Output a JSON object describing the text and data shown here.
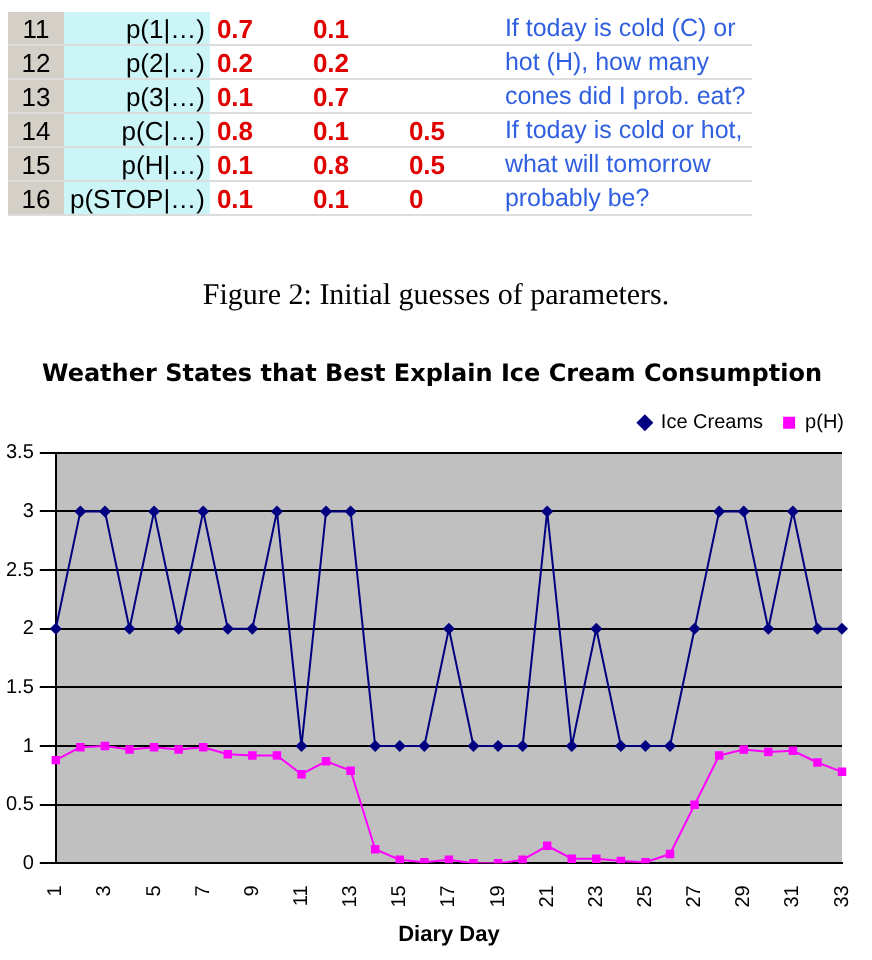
{
  "chart_data": {
    "type": "line",
    "title": "Weather States that Best Explain Ice Cream Consumption",
    "xlabel": "Diary Day",
    "annotations": [
      "11\tp(1|…)\t0.7\t0.1\t\tIf today is cold (C) or",
      "12\tp(2|…)\t0.2\t0.2\t\thot (H), how many",
      "13\tp(3|…)\t0.1\t0.7\t\tcones did I prob. eat?",
      "14\tp(C|…)\t0.8\t0.1\t0.5\tIf today is cold or hot,",
      "15\tp(H|…)\t0.1\t0.8\t0.5\twhat will tomorrow",
      "16\tp(STOP|…)\t0.1\t0.1\t0\tprobably be?",
      "Figure 2: Initial guesses of parameters."
    ],
    "categories": [
      "1",
      null,
      "3",
      null,
      "5",
      null,
      "7",
      null,
      "9",
      null,
      "11",
      null,
      "13",
      null,
      "15",
      null,
      "17",
      null,
      "19",
      null,
      "21",
      null,
      "23",
      null,
      "25",
      null,
      "27",
      null,
      "29",
      null,
      "31",
      null,
      "33"
    ],
    "series": [
      {
        "name": "Ice Creams",
        "color": "#000080",
        "marker": "diamond",
        "values": [
          2,
          3,
          3,
          2,
          3,
          2,
          3,
          2,
          2,
          3,
          1,
          3,
          3,
          1,
          1,
          1,
          2,
          1,
          1,
          1,
          3,
          1,
          2,
          1,
          1,
          1,
          2,
          3,
          3,
          2,
          3,
          2,
          2
        ]
      },
      {
        "name": "p(H)",
        "color": "#ff00ff",
        "marker": "square",
        "values": [
          0.88,
          0.99,
          1.0,
          0.97,
          0.99,
          0.97,
          0.99,
          0.93,
          0.92,
          0.92,
          0.76,
          0.87,
          0.79,
          0.12,
          0.03,
          0.01,
          0.03,
          0.0,
          0.0,
          0.03,
          0.15,
          0.04,
          0.04,
          0.02,
          0.01,
          0.08,
          0.5,
          0.92,
          0.97,
          0.95,
          0.96,
          0.86,
          0.78
        ]
      }
    ],
    "ylim": [
      0,
      3.5
    ],
    "yticks": [
      0,
      0.5,
      1,
      1.5,
      2,
      2.5,
      3,
      3.5
    ],
    "grid": "y",
    "legend": "top right"
  }
}
